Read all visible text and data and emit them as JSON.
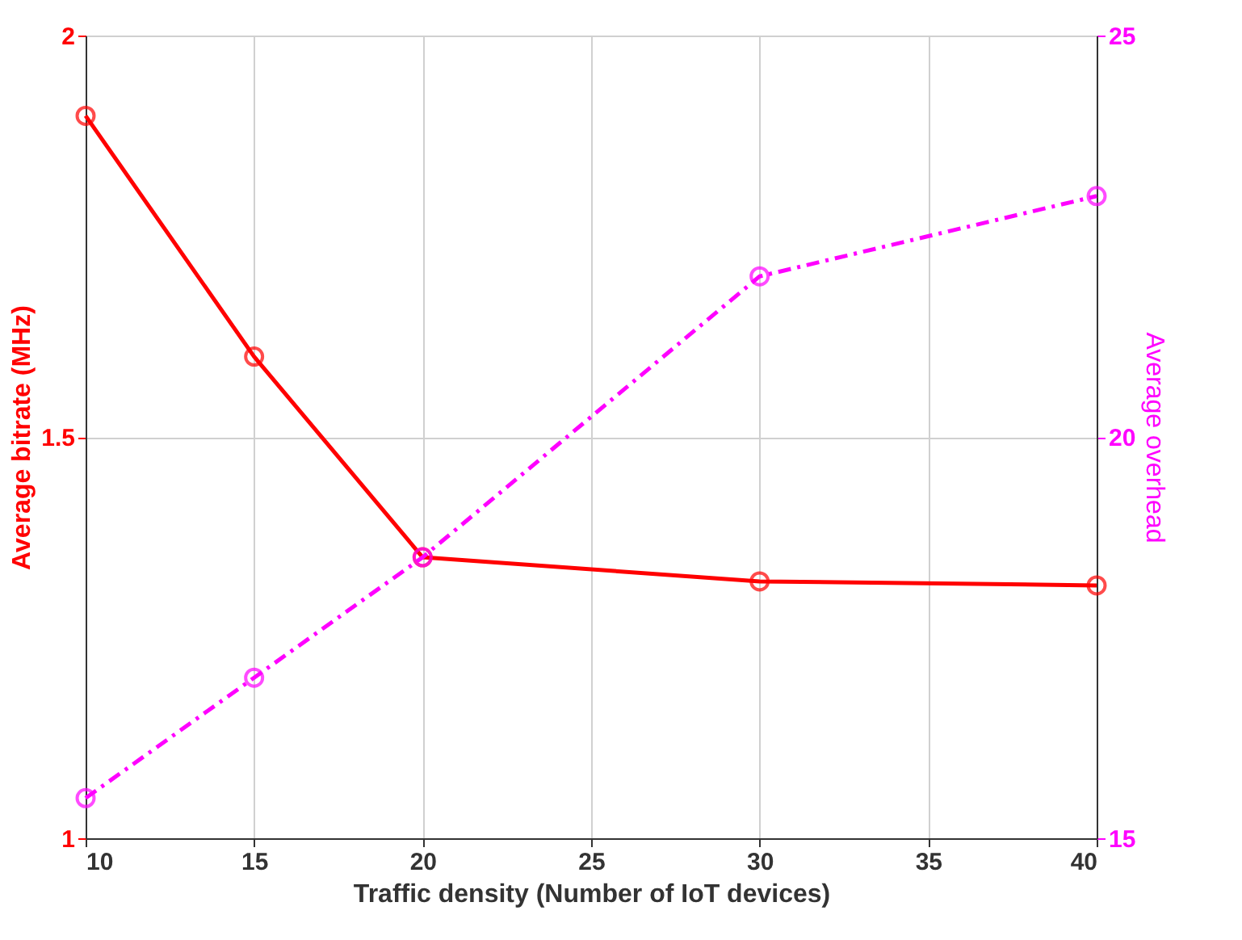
{
  "chart_data": {
    "type": "line",
    "xlabel": "Traffic density (Number of IoT devices)",
    "ylabel": "Average bitrate (MHz)",
    "y2label": "Average overhead",
    "x": [
      10,
      15,
      20,
      30,
      40
    ],
    "series": [
      {
        "color": "#ff0000",
        "values": [
          1.9,
          1.6,
          1.35,
          1.32,
          1.315
        ],
        "line_style": "solid"
      },
      {
        "color": "#ff00ff",
        "values": [
          15.5,
          17,
          18.5,
          22,
          23
        ],
        "axis": "y2",
        "line_style": "dashed"
      }
    ],
    "xlim": [
      10,
      40
    ],
    "xticks": [
      10,
      15,
      20,
      25,
      30,
      35,
      40
    ],
    "ylim": [
      1,
      2
    ],
    "yticks": [
      1,
      1.5,
      2
    ],
    "y2lim": [
      15,
      25
    ],
    "y2ticks": [
      15,
      20,
      25
    ],
    "marker": "circle",
    "grid": true
  }
}
